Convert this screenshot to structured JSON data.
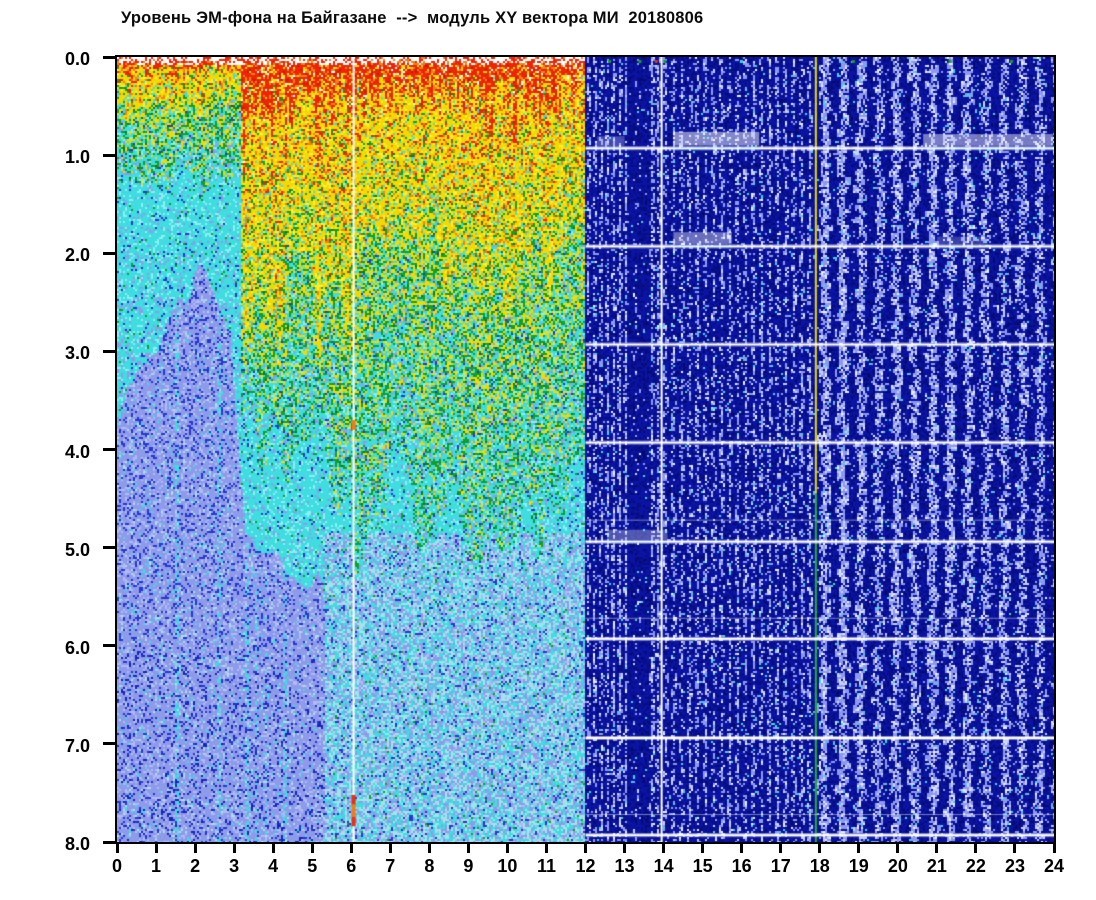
{
  "chart_data": {
    "type": "heatmap",
    "variant": "spectrogram",
    "title": "Уровень ЭМ-фона на Байгазане  -->  модуль XY вектора МИ  20180806",
    "station": "Байгазан",
    "date_label": "20180806",
    "x_axis": {
      "min": 0,
      "max": 24,
      "tick_labels": [
        "0",
        "1",
        "2",
        "3",
        "4",
        "5",
        "6",
        "7",
        "8",
        "9",
        "10",
        "11",
        "12",
        "13",
        "14",
        "15",
        "16",
        "17",
        "18",
        "19",
        "20",
        "21",
        "22",
        "23",
        "24"
      ]
    },
    "y_axis": {
      "min": 0,
      "max": 8,
      "inverted": true,
      "tick_labels": [
        "0.0",
        "1.0",
        "2.0",
        "3.0",
        "4.0",
        "5.0",
        "6.0",
        "7.0",
        "8.0"
      ]
    },
    "palette": {
      "red": "#ee2404",
      "red_deep": "#cc1800",
      "orange": "#f08018",
      "yellow": "#f2da00",
      "yellow_bright": "#ffee33",
      "green": "#129e2a",
      "green_dark": "#0c7a20",
      "cyan": "#3fdce0",
      "cyan_light": "#8ceef0",
      "cyan_pale": "#aadfe9",
      "periwinkle": "#8e9bea",
      "periwinkle_light": "#b0baf4",
      "blue_speckle": "#2737cf",
      "blue_deep": "#1726b8",
      "right_base": "#0a13a3",
      "right_dark": "#070e86",
      "right_darker": "#050a6e",
      "stripe_light": "#8d99f0",
      "stripe_bright": "#c6cfff",
      "stripe_white": "#e9edff",
      "cyan_dot": "#35dbe2",
      "white": "#ffffff",
      "line_yellow": "#e8d800",
      "line_green": "#21b236",
      "hotspot_orange": "#f07c14",
      "hotspot_red": "#e83010"
    },
    "left_section": {
      "x_range": [
        0,
        12
      ],
      "bands": [
        {
          "x": [
            0,
            3.2
          ],
          "red_depth": 0.1,
          "yellow_depth": 0.48,
          "green_depth": 1.35
        },
        {
          "x": [
            3.2,
            6.05
          ],
          "red_depth": 0.62,
          "yellow_depth": 2.35,
          "green_depth": 4.3
        },
        {
          "x": [
            6.05,
            12
          ],
          "red_depth": 0.5,
          "yellow_depth": 2.15,
          "green_depth": 4.75
        }
      ],
      "yellow_boost_x": [
        3.25,
        4.3
      ],
      "shallow_fade_x": 11.55,
      "pale_boundary": [
        [
          0,
          3.8
        ],
        [
          2.25,
          2.25
        ],
        [
          2.9,
          2.9
        ],
        [
          3.3,
          5.0
        ],
        [
          5.3,
          5.55
        ],
        [
          5.35,
          9.0
        ]
      ],
      "deep_mix_y": 4.85,
      "cyan_streak_x": [
        1.55,
        2.62,
        3.34,
        3.56,
        3.82,
        4.3
      ]
    },
    "right_section": {
      "x_range": [
        12,
        24
      ],
      "stripe_groups": [
        {
          "x": [
            12.0,
            13.08
          ],
          "period": 0.16,
          "duty": 0.45,
          "brightness": 0.75
        },
        {
          "x": [
            13.08,
            13.64
          ],
          "period": 0.5,
          "duty": 0.12,
          "brightness": 0.32
        },
        {
          "x": [
            13.64,
            13.95
          ],
          "period": 0.15,
          "duty": 0.55,
          "brightness": 0.9
        },
        {
          "x": [
            13.95,
            17.9
          ],
          "period": 0.205,
          "duty": 0.42,
          "brightness": 0.72
        },
        {
          "x": [
            17.9,
            24.01
          ],
          "period": 0.46,
          "duty": 0.48,
          "brightness": 0.95
        }
      ],
      "horizontal_lines_main_y": [
        0.93,
        1.93,
        2.93,
        3.93,
        4.94,
        5.93,
        6.94,
        7.93
      ],
      "horizontal_lines_faint_y": [
        4.72,
        5.72,
        7.72
      ],
      "top_specks": [
        {
          "x": 12.6,
          "color": "green"
        },
        {
          "x": 13.38,
          "color": "green"
        },
        {
          "x": 13.8,
          "color": "hotspot_red"
        },
        {
          "x": 14.02,
          "color": "green"
        },
        {
          "x": 15.98,
          "color": "cyan_dot"
        },
        {
          "x": 18.85,
          "color": "green"
        },
        {
          "x": 21.32,
          "color": "green"
        },
        {
          "x": 22.9,
          "color": "green"
        }
      ]
    },
    "vertical_lines": [
      {
        "x": 6.06,
        "color_key": "white",
        "y": [
          0,
          8
        ],
        "width": 2
      },
      {
        "x": 13.95,
        "color_key": "white",
        "y": [
          0,
          8
        ],
        "width": 2
      },
      {
        "x": 17.9,
        "color_key": "line_yellow",
        "y": [
          0,
          4.45
        ],
        "width": 2
      },
      {
        "x": 17.9,
        "color_key": "line_green",
        "y": [
          4.45,
          8
        ],
        "width": 2
      }
    ],
    "hotspots": [
      {
        "x": 6.06,
        "y": [
          3.7,
          3.8
        ],
        "color_key": "hotspot_orange"
      },
      {
        "x": 6.06,
        "y": [
          7.52,
          7.62
        ],
        "color_key": "hotspot_red"
      },
      {
        "x": 6.06,
        "y": [
          7.62,
          7.74
        ],
        "color_key": "hotspot_orange"
      },
      {
        "x": 6.06,
        "y": [
          7.74,
          7.84
        ],
        "color_key": "hotspot_red"
      }
    ],
    "smudges": [
      {
        "x": [
          14.25,
          16.45
        ],
        "y": 0.9,
        "h": 0.14,
        "alpha": 0.5
      },
      {
        "x": [
          20.65,
          23.97
        ],
        "y": 0.9,
        "h": 0.12,
        "alpha": 0.45
      },
      {
        "x": [
          12.3,
          13.0
        ],
        "y": 0.9,
        "h": 0.1,
        "alpha": 0.25
      },
      {
        "x": [
          14.25,
          15.75
        ],
        "y": 1.9,
        "h": 0.12,
        "alpha": 0.4
      },
      {
        "x": [
          21.0,
          22.3
        ],
        "y": 1.9,
        "h": 0.08,
        "alpha": 0.2
      },
      {
        "x": [
          12.55,
          14.1
        ],
        "y": 4.91,
        "h": 0.1,
        "alpha": 0.3
      }
    ]
  }
}
